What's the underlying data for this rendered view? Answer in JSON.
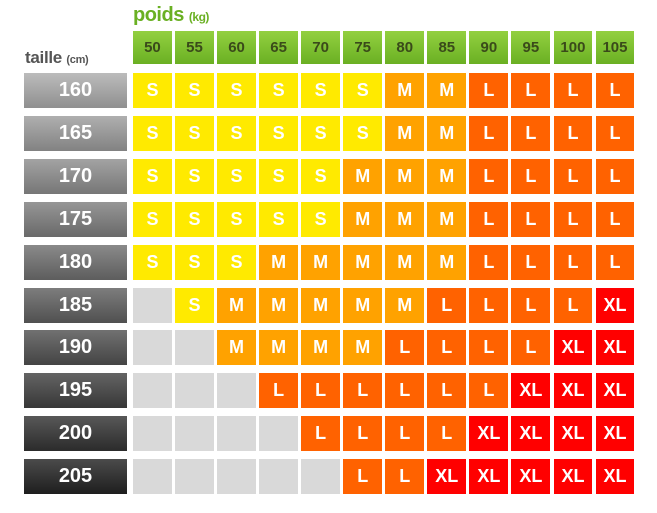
{
  "header": {
    "weight_title": "poids",
    "weight_unit": "(kg)",
    "height_title": "taille",
    "height_unit": "(cm)"
  },
  "weights": [
    "50",
    "55",
    "60",
    "65",
    "70",
    "75",
    "80",
    "85",
    "90",
    "95",
    "100",
    "105"
  ],
  "heights": [
    "160",
    "165",
    "170",
    "175",
    "180",
    "185",
    "190",
    "195",
    "200",
    "205"
  ],
  "sizes": [
    [
      "S",
      "S",
      "S",
      "S",
      "S",
      "S",
      "M",
      "M",
      "L",
      "L",
      "L",
      "L"
    ],
    [
      "S",
      "S",
      "S",
      "S",
      "S",
      "S",
      "M",
      "M",
      "L",
      "L",
      "L",
      "L"
    ],
    [
      "S",
      "S",
      "S",
      "S",
      "S",
      "M",
      "M",
      "M",
      "L",
      "L",
      "L",
      "L"
    ],
    [
      "S",
      "S",
      "S",
      "S",
      "S",
      "M",
      "M",
      "M",
      "L",
      "L",
      "L",
      "L"
    ],
    [
      "S",
      "S",
      "S",
      "M",
      "M",
      "M",
      "M",
      "M",
      "L",
      "L",
      "L",
      "L"
    ],
    [
      "",
      "S",
      "M",
      "M",
      "M",
      "M",
      "M",
      "L",
      "L",
      "L",
      "L",
      "XL"
    ],
    [
      "",
      "",
      "M",
      "M",
      "M",
      "M",
      "L",
      "L",
      "L",
      "L",
      "XL",
      "XL"
    ],
    [
      "",
      "",
      "",
      "L",
      "L",
      "L",
      "L",
      "L",
      "L",
      "XL",
      "XL",
      "XL"
    ],
    [
      "",
      "",
      "",
      "",
      "L",
      "L",
      "L",
      "L",
      "XL",
      "XL",
      "XL",
      "XL"
    ],
    [
      "",
      "",
      "",
      "",
      "",
      "L",
      "L",
      "XL",
      "XL",
      "XL",
      "XL",
      "XL"
    ]
  ],
  "colors": {
    "S": "#ffea00",
    "M": "#ffa200",
    "L": "#ff6200",
    "XL": "#ff0000",
    "empty": "#d9d9d9",
    "header_green": "#6ab023",
    "height_label_light": "#8f8f8f",
    "height_label_dark": "#1e1e1e"
  }
}
